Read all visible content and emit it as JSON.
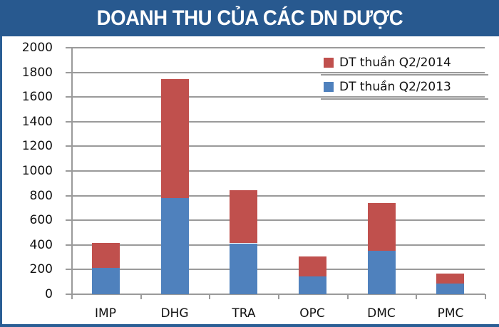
{
  "title": "DOANH THU CỦA CÁC DN DƯỢC",
  "colors": {
    "title_bg": "#28598f",
    "frame": "#2a5e95",
    "series_2014": "#c0504d",
    "series_2013": "#4f81bd",
    "grid": "#9a9a9a"
  },
  "legend": [
    {
      "label": "DT thuần Q2/2014",
      "color": "#c0504d"
    },
    {
      "label": "DT thuần Q2/2013",
      "color": "#4f81bd"
    }
  ],
  "y_ticks": [
    "2000",
    "1800",
    "1600",
    "1400",
    "1200",
    "1000",
    "800",
    "600",
    "400",
    "200",
    "0"
  ],
  "x_labels": [
    "IMP",
    "DHG",
    "TRA",
    "OPC",
    "DMC",
    "PMC"
  ],
  "chart_data": {
    "type": "bar",
    "stacked": true,
    "title": "DOANH THU CỦA CÁC DN DƯỢC",
    "xlabel": "",
    "ylabel": "",
    "categories": [
      "IMP",
      "DHG",
      "TRA",
      "OPC",
      "DMC",
      "PMC"
    ],
    "series": [
      {
        "name": "DT thuần Q2/2013",
        "color": "#4f81bd",
        "values": [
          214,
          780,
          412,
          143,
          350,
          88
        ]
      },
      {
        "name": "DT thuần Q2/2014",
        "color": "#c0504d",
        "values": [
          200,
          965,
          430,
          162,
          390,
          80
        ]
      }
    ],
    "ylim": [
      0,
      2000
    ],
    "yticks": [
      0,
      200,
      400,
      600,
      800,
      1000,
      1200,
      1400,
      1600,
      1800,
      2000
    ],
    "grid": true,
    "legend_position": "upper right"
  }
}
